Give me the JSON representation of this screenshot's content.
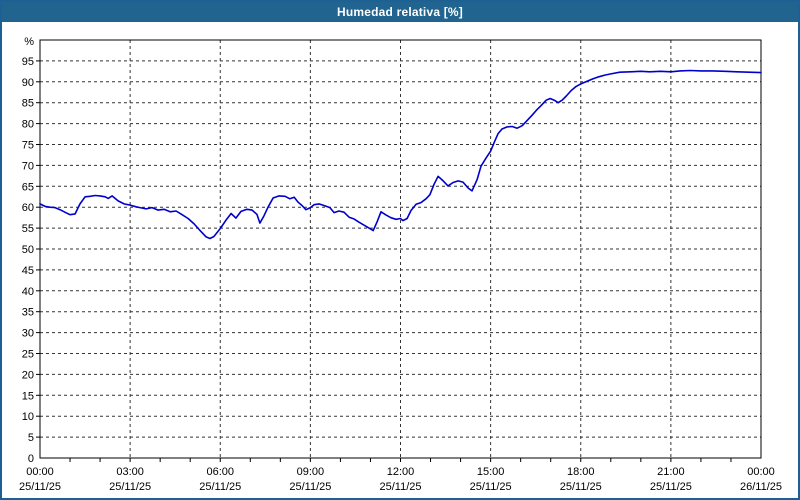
{
  "window": {
    "title": "Humedad relativa [%]"
  },
  "colors": {
    "titlebar_bg": "#20648f",
    "titlebar_text": "#ffffff",
    "frame_border": "#1d6094",
    "plot_bg": "#ffffff",
    "axis": "#000000",
    "grid": "#333333",
    "label_text": "#000000",
    "line": "#0000cc"
  },
  "chart_data": {
    "type": "line",
    "title": "Humedad relativa [%]",
    "grid": "dashed",
    "legend": "none",
    "yaxis": {
      "unit_label": "%",
      "min": 0,
      "max": 100,
      "tick_step": 5,
      "tick_labels": [
        "95",
        "90",
        "85",
        "80",
        "75",
        "70",
        "65",
        "60",
        "55",
        "50",
        "45",
        "40",
        "35",
        "30",
        "25",
        "20",
        "15",
        "10",
        "5",
        "0"
      ]
    },
    "xaxis": {
      "span_hours": 24,
      "major_step_hours": 3,
      "minor_tick_hours": 1,
      "tick_labels": [
        {
          "time": "00:00",
          "date": "25/11/25"
        },
        {
          "time": "03:00",
          "date": "25/11/25"
        },
        {
          "time": "06:00",
          "date": "25/11/25"
        },
        {
          "time": "09:00",
          "date": "25/11/25"
        },
        {
          "time": "12:00",
          "date": "25/11/25"
        },
        {
          "time": "15:00",
          "date": "25/11/25"
        },
        {
          "time": "18:00",
          "date": "25/11/25"
        },
        {
          "time": "21:00",
          "date": "25/11/25"
        },
        {
          "time": "00:00",
          "date": "26/11/25"
        }
      ]
    },
    "series": [
      {
        "name": "Humedad relativa",
        "color": "#0000cc",
        "points": [
          [
            0.0,
            60.8
          ],
          [
            0.17,
            60.2
          ],
          [
            0.33,
            60.0
          ],
          [
            0.5,
            59.9
          ],
          [
            0.67,
            59.4
          ],
          [
            0.83,
            58.8
          ],
          [
            1.0,
            58.2
          ],
          [
            1.17,
            58.4
          ],
          [
            1.33,
            60.8
          ],
          [
            1.5,
            62.5
          ],
          [
            1.67,
            62.6
          ],
          [
            1.83,
            62.8
          ],
          [
            2.0,
            62.7
          ],
          [
            2.17,
            62.5
          ],
          [
            2.27,
            62.1
          ],
          [
            2.4,
            62.7
          ],
          [
            2.6,
            61.5
          ],
          [
            2.8,
            60.8
          ],
          [
            3.0,
            60.5
          ],
          [
            3.2,
            60.1
          ],
          [
            3.33,
            59.9
          ],
          [
            3.53,
            59.6
          ],
          [
            3.73,
            59.9
          ],
          [
            3.93,
            59.3
          ],
          [
            4.13,
            59.5
          ],
          [
            4.33,
            58.9
          ],
          [
            4.53,
            59.1
          ],
          [
            4.73,
            58.2
          ],
          [
            4.93,
            57.3
          ],
          [
            5.13,
            56.0
          ],
          [
            5.33,
            54.4
          ],
          [
            5.53,
            52.9
          ],
          [
            5.66,
            52.5
          ],
          [
            5.79,
            53.0
          ],
          [
            6.0,
            54.9
          ],
          [
            6.2,
            57.0
          ],
          [
            6.36,
            58.5
          ],
          [
            6.52,
            57.4
          ],
          [
            6.69,
            59.0
          ],
          [
            6.89,
            59.5
          ],
          [
            7.06,
            59.3
          ],
          [
            7.22,
            58.3
          ],
          [
            7.32,
            56.2
          ],
          [
            7.46,
            58.0
          ],
          [
            7.59,
            60.0
          ],
          [
            7.76,
            62.2
          ],
          [
            7.96,
            62.7
          ],
          [
            8.16,
            62.6
          ],
          [
            8.32,
            62.0
          ],
          [
            8.46,
            62.4
          ],
          [
            8.59,
            61.2
          ],
          [
            8.72,
            60.4
          ],
          [
            8.85,
            59.4
          ],
          [
            9.0,
            59.9
          ],
          [
            9.12,
            60.6
          ],
          [
            9.29,
            60.8
          ],
          [
            9.49,
            60.3
          ],
          [
            9.65,
            59.9
          ],
          [
            9.79,
            58.7
          ],
          [
            9.95,
            59.1
          ],
          [
            10.12,
            58.8
          ],
          [
            10.29,
            57.6
          ],
          [
            10.45,
            57.2
          ],
          [
            10.62,
            56.4
          ],
          [
            10.79,
            55.7
          ],
          [
            10.95,
            55.0
          ],
          [
            11.09,
            54.4
          ],
          [
            11.22,
            56.5
          ],
          [
            11.35,
            58.9
          ],
          [
            11.52,
            58.1
          ],
          [
            11.68,
            57.5
          ],
          [
            11.85,
            57.1
          ],
          [
            12.0,
            57.3
          ],
          [
            12.08,
            56.8
          ],
          [
            12.22,
            57.3
          ],
          [
            12.35,
            59.2
          ],
          [
            12.52,
            60.7
          ],
          [
            12.68,
            61.1
          ],
          [
            12.85,
            62.0
          ],
          [
            12.98,
            63.0
          ],
          [
            13.12,
            65.5
          ],
          [
            13.25,
            67.4
          ],
          [
            13.42,
            66.3
          ],
          [
            13.58,
            65.1
          ],
          [
            13.75,
            65.9
          ],
          [
            13.92,
            66.3
          ],
          [
            14.08,
            66.0
          ],
          [
            14.25,
            64.6
          ],
          [
            14.38,
            63.9
          ],
          [
            14.55,
            66.6
          ],
          [
            14.68,
            69.8
          ],
          [
            14.85,
            71.8
          ],
          [
            15.0,
            73.4
          ],
          [
            15.12,
            75.5
          ],
          [
            15.25,
            77.6
          ],
          [
            15.38,
            78.7
          ],
          [
            15.55,
            79.2
          ],
          [
            15.72,
            79.3
          ],
          [
            15.88,
            78.9
          ],
          [
            16.05,
            79.5
          ],
          [
            16.22,
            80.8
          ],
          [
            16.38,
            82.0
          ],
          [
            16.55,
            83.4
          ],
          [
            16.68,
            84.3
          ],
          [
            16.85,
            85.6
          ],
          [
            16.98,
            86.0
          ],
          [
            17.12,
            85.6
          ],
          [
            17.25,
            85.0
          ],
          [
            17.38,
            85.6
          ],
          [
            17.52,
            86.6
          ],
          [
            17.68,
            87.9
          ],
          [
            17.85,
            88.9
          ],
          [
            18.0,
            89.5
          ],
          [
            18.2,
            90.1
          ],
          [
            18.4,
            90.7
          ],
          [
            18.6,
            91.2
          ],
          [
            18.8,
            91.6
          ],
          [
            19.0,
            91.9
          ],
          [
            19.3,
            92.3
          ],
          [
            19.65,
            92.4
          ],
          [
            20.0,
            92.5
          ],
          [
            20.3,
            92.4
          ],
          [
            20.65,
            92.5
          ],
          [
            21.0,
            92.4
          ],
          [
            21.3,
            92.6
          ],
          [
            21.65,
            92.7
          ],
          [
            22.0,
            92.6
          ],
          [
            22.4,
            92.6
          ],
          [
            22.8,
            92.5
          ],
          [
            23.2,
            92.4
          ],
          [
            23.6,
            92.3
          ],
          [
            24.0,
            92.2
          ]
        ]
      }
    ]
  }
}
